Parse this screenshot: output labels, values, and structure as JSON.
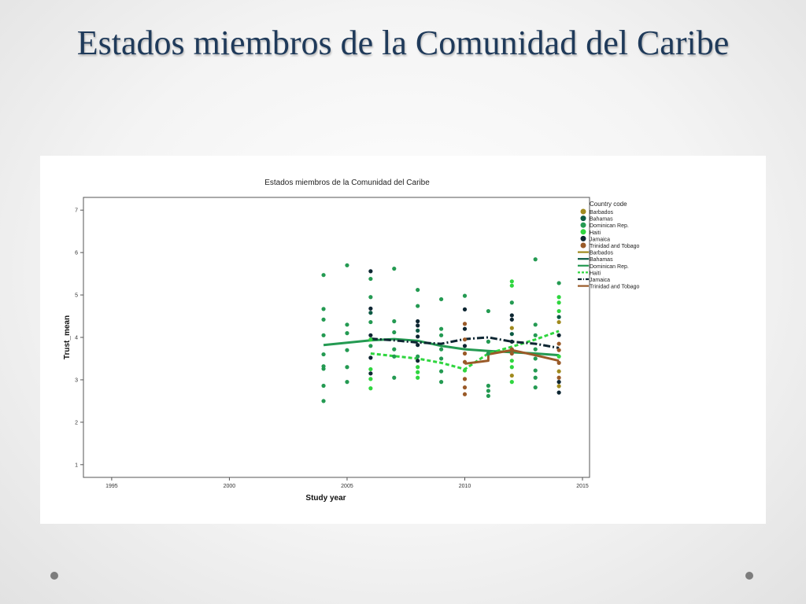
{
  "slide": {
    "title": "Estados miembros de la Comunidad del Caribe"
  },
  "colors": {
    "Barbados": "#a08a1e",
    "Bahamas": "#0b5a43",
    "Dominican Rep.": "#249a52",
    "Haiti": "#2fd63f",
    "Jamaica": "#0d2632",
    "Trinidad and Tobago": "#9a5a28"
  },
  "chart_data": {
    "type": "scatter",
    "title": "Estados miembros de la Comunidad del Caribe",
    "xlabel": "Study year",
    "ylabel": "Trust_mean",
    "xlim": [
      1993.8,
      2015.3
    ],
    "ylim": [
      0.7,
      7.3
    ],
    "xticks": [
      1995,
      2000,
      2005,
      2010,
      2015
    ],
    "yticks": [
      1,
      2,
      3,
      4,
      5,
      6,
      7
    ],
    "grid": false,
    "legend_position": "right",
    "legend_title": "Country code",
    "legend_markers": [
      "Barbados",
      "Bahamas",
      "Dominican Rep.",
      "Haiti",
      "Jamaica",
      "Trinidad and Tobago"
    ],
    "legend_lines": [
      "Barbados",
      "Bahamas",
      "Dominican Rep.",
      "Haiti",
      "Jamaica",
      "Trinidad and Tobago"
    ],
    "points": [
      {
        "country": "Dominican Rep.",
        "x": 2004,
        "y": 5.47
      },
      {
        "country": "Dominican Rep.",
        "x": 2004,
        "y": 4.67
      },
      {
        "country": "Dominican Rep.",
        "x": 2004,
        "y": 4.42
      },
      {
        "country": "Dominican Rep.",
        "x": 2004,
        "y": 4.05
      },
      {
        "country": "Dominican Rep.",
        "x": 2004,
        "y": 3.6
      },
      {
        "country": "Dominican Rep.",
        "x": 2004,
        "y": 3.32
      },
      {
        "country": "Dominican Rep.",
        "x": 2004,
        "y": 3.26
      },
      {
        "country": "Dominican Rep.",
        "x": 2004,
        "y": 2.86
      },
      {
        "country": "Dominican Rep.",
        "x": 2004,
        "y": 2.5
      },
      {
        "country": "Dominican Rep.",
        "x": 2005,
        "y": 5.7
      },
      {
        "country": "Dominican Rep.",
        "x": 2005,
        "y": 4.3
      },
      {
        "country": "Dominican Rep.",
        "x": 2005,
        "y": 4.1
      },
      {
        "country": "Dominican Rep.",
        "x": 2005,
        "y": 3.7
      },
      {
        "country": "Dominican Rep.",
        "x": 2005,
        "y": 3.3
      },
      {
        "country": "Dominican Rep.",
        "x": 2005,
        "y": 2.95
      },
      {
        "country": "Jamaica",
        "x": 2006,
        "y": 5.56
      },
      {
        "country": "Dominican Rep.",
        "x": 2006,
        "y": 5.38
      },
      {
        "country": "Dominican Rep.",
        "x": 2006,
        "y": 4.95
      },
      {
        "country": "Jamaica",
        "x": 2006,
        "y": 4.68
      },
      {
        "country": "Bahamas",
        "x": 2006,
        "y": 4.58
      },
      {
        "country": "Dominican Rep.",
        "x": 2006,
        "y": 4.36
      },
      {
        "country": "Jamaica",
        "x": 2006,
        "y": 4.05
      },
      {
        "country": "Haiti",
        "x": 2006,
        "y": 3.95
      },
      {
        "country": "Dominican Rep.",
        "x": 2006,
        "y": 3.8
      },
      {
        "country": "Jamaica",
        "x": 2006,
        "y": 3.52
      },
      {
        "country": "Haiti",
        "x": 2006,
        "y": 3.25
      },
      {
        "country": "Jamaica",
        "x": 2006,
        "y": 3.15
      },
      {
        "country": "Haiti",
        "x": 2006,
        "y": 3.02
      },
      {
        "country": "Haiti",
        "x": 2006,
        "y": 2.8
      },
      {
        "country": "Dominican Rep.",
        "x": 2007,
        "y": 5.62
      },
      {
        "country": "Dominican Rep.",
        "x": 2007,
        "y": 4.38
      },
      {
        "country": "Dominican Rep.",
        "x": 2007,
        "y": 4.12
      },
      {
        "country": "Dominican Rep.",
        "x": 2007,
        "y": 3.72
      },
      {
        "country": "Dominican Rep.",
        "x": 2007,
        "y": 3.55
      },
      {
        "country": "Dominican Rep.",
        "x": 2007,
        "y": 3.05
      },
      {
        "country": "Dominican Rep.",
        "x": 2008,
        "y": 5.12
      },
      {
        "country": "Dominican Rep.",
        "x": 2008,
        "y": 4.74
      },
      {
        "country": "Jamaica",
        "x": 2008,
        "y": 4.38
      },
      {
        "country": "Jamaica",
        "x": 2008,
        "y": 4.28
      },
      {
        "country": "Bahamas",
        "x": 2008,
        "y": 4.16
      },
      {
        "country": "Jamaica",
        "x": 2008,
        "y": 4.02
      },
      {
        "country": "Jamaica",
        "x": 2008,
        "y": 3.82
      },
      {
        "country": "Dominican Rep.",
        "x": 2008,
        "y": 3.55
      },
      {
        "country": "Jamaica",
        "x": 2008,
        "y": 3.45
      },
      {
        "country": "Haiti",
        "x": 2008,
        "y": 3.3
      },
      {
        "country": "Haiti",
        "x": 2008,
        "y": 3.18
      },
      {
        "country": "Haiti",
        "x": 2008,
        "y": 3.05
      },
      {
        "country": "Dominican Rep.",
        "x": 2009,
        "y": 4.9
      },
      {
        "country": "Dominican Rep.",
        "x": 2009,
        "y": 4.2
      },
      {
        "country": "Dominican Rep.",
        "x": 2009,
        "y": 4.05
      },
      {
        "country": "Dominican Rep.",
        "x": 2009,
        "y": 3.72
      },
      {
        "country": "Dominican Rep.",
        "x": 2009,
        "y": 3.5
      },
      {
        "country": "Dominican Rep.",
        "x": 2009,
        "y": 3.2
      },
      {
        "country": "Dominican Rep.",
        "x": 2009,
        "y": 2.95
      },
      {
        "country": "Dominican Rep.",
        "x": 2010,
        "y": 4.98
      },
      {
        "country": "Jamaica",
        "x": 2010,
        "y": 4.66
      },
      {
        "country": "Trinidad and Tobago",
        "x": 2010,
        "y": 4.32
      },
      {
        "country": "Jamaica",
        "x": 2010,
        "y": 4.2
      },
      {
        "country": "Trinidad and Tobago",
        "x": 2010,
        "y": 3.95
      },
      {
        "country": "Jamaica",
        "x": 2010,
        "y": 3.8
      },
      {
        "country": "Trinidad and Tobago",
        "x": 2010,
        "y": 3.62
      },
      {
        "country": "Trinidad and Tobago",
        "x": 2010,
        "y": 3.42
      },
      {
        "country": "Haiti",
        "x": 2010,
        "y": 3.22
      },
      {
        "country": "Trinidad and Tobago",
        "x": 2010,
        "y": 3.02
      },
      {
        "country": "Trinidad and Tobago",
        "x": 2010,
        "y": 2.82
      },
      {
        "country": "Trinidad and Tobago",
        "x": 2010,
        "y": 2.66
      },
      {
        "country": "Dominican Rep.",
        "x": 2011,
        "y": 4.62
      },
      {
        "country": "Dominican Rep.",
        "x": 2011,
        "y": 3.9
      },
      {
        "country": "Dominican Rep.",
        "x": 2011,
        "y": 3.62
      },
      {
        "country": "Dominican Rep.",
        "x": 2011,
        "y": 2.86
      },
      {
        "country": "Dominican Rep.",
        "x": 2011,
        "y": 2.74
      },
      {
        "country": "Dominican Rep.",
        "x": 2011,
        "y": 2.62
      },
      {
        "country": "Haiti",
        "x": 2012,
        "y": 5.32
      },
      {
        "country": "Haiti",
        "x": 2012,
        "y": 5.22
      },
      {
        "country": "Dominican Rep.",
        "x": 2012,
        "y": 4.82
      },
      {
        "country": "Jamaica",
        "x": 2012,
        "y": 4.52
      },
      {
        "country": "Jamaica",
        "x": 2012,
        "y": 4.42
      },
      {
        "country": "Barbados",
        "x": 2012,
        "y": 4.22
      },
      {
        "country": "Bahamas",
        "x": 2012,
        "y": 4.08
      },
      {
        "country": "Jamaica",
        "x": 2012,
        "y": 3.9
      },
      {
        "country": "Trinidad and Tobago",
        "x": 2012,
        "y": 3.72
      },
      {
        "country": "Trinidad and Tobago",
        "x": 2012,
        "y": 3.62
      },
      {
        "country": "Haiti",
        "x": 2012,
        "y": 3.45
      },
      {
        "country": "Haiti",
        "x": 2012,
        "y": 3.3
      },
      {
        "country": "Barbados",
        "x": 2012,
        "y": 3.1
      },
      {
        "country": "Haiti",
        "x": 2012,
        "y": 2.95
      },
      {
        "country": "Dominican Rep.",
        "x": 2013,
        "y": 5.84
      },
      {
        "country": "Dominican Rep.",
        "x": 2013,
        "y": 4.3
      },
      {
        "country": "Dominican Rep.",
        "x": 2013,
        "y": 4.05
      },
      {
        "country": "Dominican Rep.",
        "x": 2013,
        "y": 3.72
      },
      {
        "country": "Dominican Rep.",
        "x": 2013,
        "y": 3.5
      },
      {
        "country": "Dominican Rep.",
        "x": 2013,
        "y": 3.22
      },
      {
        "country": "Dominican Rep.",
        "x": 2013,
        "y": 3.05
      },
      {
        "country": "Dominican Rep.",
        "x": 2013,
        "y": 2.82
      },
      {
        "country": "Dominican Rep.",
        "x": 2014,
        "y": 5.28
      },
      {
        "country": "Haiti",
        "x": 2014,
        "y": 4.95
      },
      {
        "country": "Haiti",
        "x": 2014,
        "y": 4.82
      },
      {
        "country": "Haiti",
        "x": 2014,
        "y": 4.62
      },
      {
        "country": "Bahamas",
        "x": 2014,
        "y": 4.48
      },
      {
        "country": "Barbados",
        "x": 2014,
        "y": 4.36
      },
      {
        "country": "Jamaica",
        "x": 2014,
        "y": 4.05
      },
      {
        "country": "Trinidad and Tobago",
        "x": 2014,
        "y": 3.85
      },
      {
        "country": "Trinidad and Tobago",
        "x": 2014,
        "y": 3.7
      },
      {
        "country": "Haiti",
        "x": 2014,
        "y": 3.55
      },
      {
        "country": "Trinidad and Tobago",
        "x": 2014,
        "y": 3.4
      },
      {
        "country": "Barbados",
        "x": 2014,
        "y": 3.2
      },
      {
        "country": "Trinidad and Tobago",
        "x": 2014,
        "y": 3.05
      },
      {
        "country": "Jamaica",
        "x": 2014,
        "y": 2.95
      },
      {
        "country": "Barbados",
        "x": 2014,
        "y": 2.85
      },
      {
        "country": "Jamaica",
        "x": 2014,
        "y": 2.7
      }
    ],
    "series": [
      {
        "name": "Dominican Rep.",
        "style": "solid",
        "x": [
          2004,
          2006,
          2007,
          2008,
          2009,
          2010,
          2011,
          2012,
          2013,
          2014
        ],
        "y": [
          3.82,
          3.93,
          3.96,
          3.92,
          3.8,
          3.72,
          3.68,
          3.65,
          3.62,
          3.58
        ]
      },
      {
        "name": "Haiti",
        "style": "dashed",
        "x": [
          2006,
          2007,
          2008,
          2009,
          2010,
          2011,
          2012,
          2013,
          2014
        ],
        "y": [
          3.62,
          3.56,
          3.5,
          3.4,
          3.25,
          3.62,
          3.78,
          3.95,
          4.15
        ]
      },
      {
        "name": "Jamaica",
        "style": "dashdot",
        "x": [
          2006,
          2007,
          2008,
          2009,
          2010,
          2011,
          2012,
          2013,
          2014
        ],
        "y": [
          3.97,
          3.93,
          3.88,
          3.85,
          3.96,
          4.0,
          3.9,
          3.85,
          3.75
        ]
      },
      {
        "name": "Trinidad and Tobago",
        "style": "solid",
        "x": [
          2010,
          2011,
          2011,
          2012,
          2013,
          2014
        ],
        "y": [
          3.38,
          3.45,
          3.6,
          3.7,
          3.58,
          3.45
        ]
      }
    ]
  }
}
